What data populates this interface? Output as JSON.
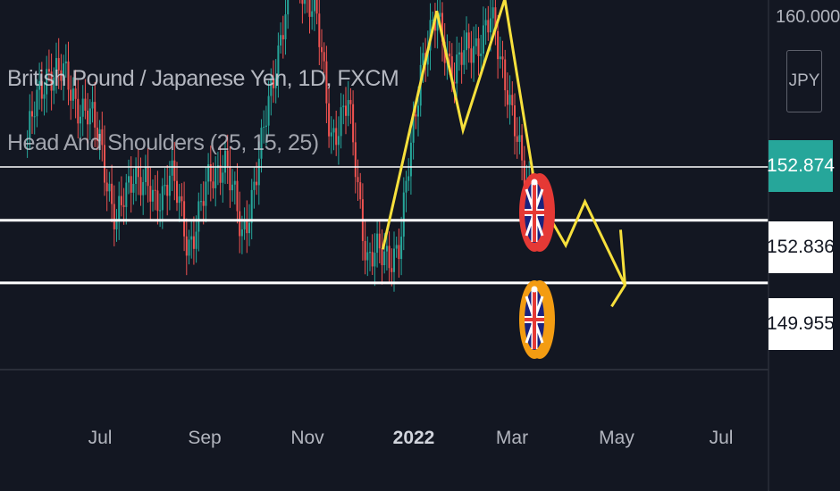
{
  "legend": {
    "symbol": "British Pound / Japanese Yen, 1D, FXCM",
    "indicator": "Head And Shoulders (25, 15, 25)"
  },
  "price_axis": {
    "currency": "JPY",
    "top_tick": "160.000",
    "labels": [
      {
        "value": "152.874",
        "style": "teal"
      },
      {
        "value": "152.836",
        "style": "white"
      },
      {
        "value": "149.955",
        "style": "white"
      }
    ]
  },
  "time_axis": {
    "labels": [
      "Jul",
      "Sep",
      "Nov",
      "2022",
      "Mar",
      "May",
      "Jul"
    ]
  },
  "colors": {
    "background": "#131722",
    "up": "#26a69a",
    "down": "#ef5350",
    "pattern": "#f7e03c",
    "level_line": "#ffffff",
    "badge_red": "#e53935",
    "badge_orange": "#f39c12"
  },
  "chart_data": {
    "type": "line",
    "title": "British Pound / Japanese Yen, 1D, FXCM",
    "xlabel": "",
    "ylabel": "",
    "x_ticks": [
      "Jul",
      "Sep",
      "Nov",
      "2022",
      "Mar",
      "May",
      "Jul"
    ],
    "levels": [
      152.874,
      152.836,
      149.955
    ],
    "price_series": {
      "name": "British Pound / Japanese Yen",
      "x": [
        "2021-05-20",
        "2021-06-01",
        "2021-06-10",
        "2021-06-20",
        "2021-07-01",
        "2021-07-10",
        "2021-07-20",
        "2021-08-01",
        "2021-08-10",
        "2021-08-20",
        "2021-09-01",
        "2021-09-10",
        "2021-09-20",
        "2021-10-01",
        "2021-10-10",
        "2021-10-20",
        "2021-11-01",
        "2021-11-10",
        "2021-11-20",
        "2021-12-01",
        "2021-12-10",
        "2021-12-20",
        "2022-01-01",
        "2022-01-10",
        "2022-01-20",
        "2022-02-01",
        "2022-02-10",
        "2022-02-20",
        "2022-03-01",
        "2022-03-08"
      ],
      "y": [
        153.6,
        155.4,
        155.1,
        154.4,
        153.6,
        151.3,
        152.9,
        151.9,
        152.8,
        150.9,
        152.4,
        153.2,
        151.1,
        153.2,
        155.7,
        157.8,
        156.9,
        153.7,
        154.4,
        150.6,
        150.6,
        150.9,
        155.6,
        156.5,
        155.3,
        156.0,
        156.5,
        154.9,
        152.4,
        152.2
      ]
    },
    "pattern_series": {
      "name": "Head And Shoulders (25, 15, 25)",
      "x": [
        "2021-12-10",
        "2022-01-10",
        "2022-01-25",
        "2022-02-18",
        "2022-03-08",
        "2022-03-25",
        "2022-04-05",
        "2022-04-28"
      ],
      "y": [
        150.8,
        156.8,
        153.8,
        157.1,
        152.2,
        150.9,
        152.0,
        149.9
      ]
    }
  }
}
